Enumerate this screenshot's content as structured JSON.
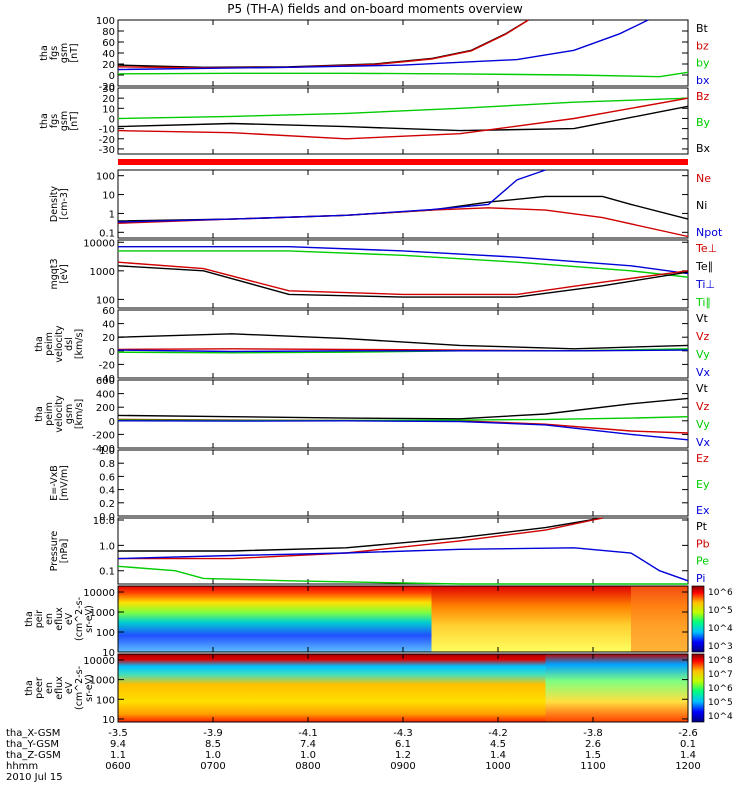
{
  "title": "P5 (TH-A) fields and on-board moments overview",
  "colors": {
    "black": "#000000",
    "red": "#d00000",
    "green": "#00cc00",
    "blue": "#0000d8"
  },
  "chart_data": [
    {
      "type": "line",
      "panel": "fgs-gsm",
      "ylabel_lines": [
        "tha",
        "fgs",
        "gsm",
        "[nT]"
      ],
      "ylim": [
        -20,
        100
      ],
      "yticks": [
        "100",
        "80",
        "60",
        "40",
        "20",
        "0",
        "-20"
      ],
      "ytick_values": [
        100,
        80,
        60,
        40,
        20,
        0,
        -20
      ],
      "legend": [
        {
          "name": "Bt",
          "color": "black"
        },
        {
          "name": "bz",
          "color": "red"
        },
        {
          "name": "by",
          "color": "green"
        },
        {
          "name": "bx",
          "color": "blue"
        }
      ],
      "series": [
        {
          "name": "Bt",
          "color": "black",
          "x": [
            0,
            0.15,
            0.3,
            0.45,
            0.55,
            0.62,
            0.68,
            0.72
          ],
          "y": [
            18,
            14,
            15,
            20,
            30,
            45,
            75,
            100
          ]
        },
        {
          "name": "bz",
          "color": "red",
          "x": [
            0,
            0.15,
            0.3,
            0.45,
            0.55,
            0.62,
            0.68,
            0.72
          ],
          "y": [
            15,
            13,
            14,
            19,
            29,
            44,
            74,
            100
          ]
        },
        {
          "name": "by",
          "color": "green",
          "x": [
            0,
            0.2,
            0.4,
            0.6,
            0.8,
            0.95,
            1.0
          ],
          "y": [
            2,
            3,
            3,
            2,
            0,
            -3,
            5
          ]
        },
        {
          "name": "bx",
          "color": "blue",
          "x": [
            0,
            0.3,
            0.5,
            0.7,
            0.8,
            0.88,
            0.93
          ],
          "y": [
            10,
            14,
            18,
            28,
            45,
            75,
            100
          ]
        }
      ]
    },
    {
      "type": "line",
      "panel": "fgs-gsm-2",
      "ylabel_lines": [
        "tha",
        "fgs",
        "gsm",
        "[nT]"
      ],
      "ylim": [
        -35,
        30
      ],
      "yticks": [
        "30",
        "20",
        "10",
        "0",
        "-10",
        "-20",
        "-30"
      ],
      "ytick_values": [
        30,
        20,
        10,
        0,
        -10,
        -20,
        -30
      ],
      "legend": [
        {
          "name": "Bz",
          "color": "red"
        },
        {
          "name": "By",
          "color": "green"
        },
        {
          "name": "Bx",
          "color": "black"
        }
      ],
      "series": [
        {
          "name": "By",
          "color": "green",
          "x": [
            0,
            0.2,
            0.4,
            0.6,
            0.8,
            1.0
          ],
          "y": [
            0,
            2,
            5,
            10,
            16,
            20
          ]
        },
        {
          "name": "Bx",
          "color": "black",
          "x": [
            0,
            0.2,
            0.4,
            0.6,
            0.8,
            1.0
          ],
          "y": [
            -8,
            -5,
            -8,
            -12,
            -10,
            12
          ]
        },
        {
          "name": "Bz",
          "color": "red",
          "x": [
            0,
            0.2,
            0.4,
            0.6,
            0.8,
            1.0
          ],
          "y": [
            -12,
            -14,
            -20,
            -15,
            0,
            20
          ]
        }
      ]
    },
    {
      "type": "line",
      "panel": "density",
      "ylabel_lines": [
        "Density",
        "[cm-3]"
      ],
      "ylim": [
        0.05,
        200
      ],
      "log": true,
      "yticks": [
        "100",
        "10",
        "1",
        "0.1"
      ],
      "ytick_values": [
        100,
        10,
        1,
        0.1
      ],
      "legend": [
        {
          "name": "Ne",
          "color": "red"
        },
        {
          "name": "Ni",
          "color": "black"
        },
        {
          "name": "Npot",
          "color": "blue"
        }
      ],
      "series": [
        {
          "name": "Ni",
          "color": "black",
          "x": [
            0,
            0.2,
            0.4,
            0.55,
            0.65,
            0.75,
            0.85,
            0.9,
            1.0
          ],
          "y": [
            0.4,
            0.5,
            0.8,
            1.5,
            4,
            8,
            8,
            3,
            0.5
          ]
        },
        {
          "name": "Ne",
          "color": "red",
          "x": [
            0,
            0.2,
            0.4,
            0.55,
            0.65,
            0.75,
            0.85,
            1.0
          ],
          "y": [
            0.3,
            0.5,
            0.8,
            1.5,
            2,
            1.5,
            0.6,
            0.06
          ]
        },
        {
          "name": "Npot",
          "color": "blue",
          "x": [
            0,
            0.2,
            0.4,
            0.55,
            0.65,
            0.7,
            0.75
          ],
          "y": [
            0.35,
            0.5,
            0.8,
            1.6,
            3,
            60,
            200
          ]
        }
      ]
    },
    {
      "type": "line",
      "panel": "temperature",
      "ylabel_lines": [
        "mgqt3",
        "[eV]"
      ],
      "ylim": [
        50,
        12000
      ],
      "log": true,
      "yticks": [
        "10000",
        "1000",
        "100"
      ],
      "ytick_values": [
        10000,
        1000,
        100
      ],
      "legend": [
        {
          "name": "Te⊥",
          "color": "red"
        },
        {
          "name": "Te∥",
          "color": "black"
        },
        {
          "name": "Ti⊥",
          "color": "blue"
        },
        {
          "name": "Ti∥",
          "color": "green"
        }
      ],
      "series": [
        {
          "name": "Ti⊥",
          "color": "blue",
          "x": [
            0,
            0.3,
            0.5,
            0.7,
            0.9,
            1.0
          ],
          "y": [
            7000,
            7000,
            5000,
            3000,
            1500,
            800
          ]
        },
        {
          "name": "Ti∥",
          "color": "green",
          "x": [
            0,
            0.3,
            0.5,
            0.7,
            0.9,
            1.0
          ],
          "y": [
            5000,
            5000,
            3500,
            2000,
            1000,
            600
          ]
        },
        {
          "name": "Te⊥",
          "color": "red",
          "x": [
            0,
            0.15,
            0.3,
            0.5,
            0.7,
            0.85,
            1.0
          ],
          "y": [
            2000,
            1200,
            200,
            150,
            150,
            400,
            1000
          ]
        },
        {
          "name": "Te∥",
          "color": "black",
          "x": [
            0,
            0.15,
            0.3,
            0.5,
            0.7,
            0.85,
            1.0
          ],
          "y": [
            1500,
            1000,
            150,
            120,
            120,
            300,
            900
          ]
        }
      ]
    },
    {
      "type": "line",
      "panel": "velocity-dsl",
      "ylabel_lines": [
        "tha",
        "peim",
        "velocity",
        "dsl",
        "[km/s]"
      ],
      "ylim": [
        -40,
        60
      ],
      "yticks": [
        "60",
        "40",
        "20",
        "0",
        "-20",
        "-40"
      ],
      "ytick_values": [
        60,
        40,
        20,
        0,
        -20,
        -40
      ],
      "legend": [
        {
          "name": "Vt",
          "color": "black"
        },
        {
          "name": "Vz",
          "color": "red"
        },
        {
          "name": "Vy",
          "color": "green"
        },
        {
          "name": "Vx",
          "color": "blue"
        }
      ],
      "series": [
        {
          "name": "Vt",
          "color": "black",
          "x": [
            0,
            0.2,
            0.4,
            0.6,
            0.8,
            1.0
          ],
          "y": [
            20,
            25,
            18,
            8,
            3,
            8
          ]
        },
        {
          "name": "Vz",
          "color": "red",
          "x": [
            0,
            0.2,
            0.4,
            0.6,
            0.8,
            1.0
          ],
          "y": [
            2,
            3,
            2,
            1,
            0,
            2
          ]
        },
        {
          "name": "Vy",
          "color": "green",
          "x": [
            0,
            0.2,
            0.4,
            0.6,
            0.8,
            1.0
          ],
          "y": [
            -2,
            -3,
            -2,
            0,
            0,
            3
          ]
        },
        {
          "name": "Vx",
          "color": "blue",
          "x": [
            0,
            0.2,
            0.4,
            0.6,
            0.8,
            1.0
          ],
          "y": [
            1,
            -1,
            0,
            0,
            0,
            1
          ]
        }
      ]
    },
    {
      "type": "line",
      "panel": "velocity-gsm",
      "ylabel_lines": [
        "tha",
        "peim",
        "velocity",
        "gsm",
        "[km/s]"
      ],
      "ylim": [
        -400,
        600
      ],
      "yticks": [
        "600",
        "400",
        "200",
        "0",
        "-200",
        "-400"
      ],
      "ytick_values": [
        600,
        400,
        200,
        0,
        -200,
        -400
      ],
      "legend": [
        {
          "name": "Vt",
          "color": "black"
        },
        {
          "name": "Vz",
          "color": "red"
        },
        {
          "name": "Vy",
          "color": "green"
        },
        {
          "name": "Vx",
          "color": "blue"
        }
      ],
      "series": [
        {
          "name": "Vt",
          "color": "black",
          "x": [
            0,
            0.2,
            0.4,
            0.6,
            0.75,
            0.9,
            1.0
          ],
          "y": [
            80,
            60,
            40,
            30,
            100,
            250,
            330
          ]
        },
        {
          "name": "Vz",
          "color": "red",
          "x": [
            0,
            0.2,
            0.4,
            0.6,
            0.75,
            0.9,
            1.0
          ],
          "y": [
            20,
            10,
            5,
            0,
            -50,
            -150,
            -180
          ]
        },
        {
          "name": "Vy",
          "color": "green",
          "x": [
            0,
            0.2,
            0.4,
            0.6,
            0.75,
            0.9,
            1.0
          ],
          "y": [
            10,
            5,
            5,
            10,
            20,
            40,
            60
          ]
        },
        {
          "name": "Vx",
          "color": "blue",
          "x": [
            0,
            0.2,
            0.4,
            0.6,
            0.75,
            0.9,
            1.0
          ],
          "y": [
            0,
            -5,
            0,
            -10,
            -60,
            -200,
            -280
          ]
        }
      ]
    },
    {
      "type": "line",
      "panel": "efield",
      "ylabel_lines": [
        "E=-VxB",
        "[mV/m]"
      ],
      "ylim": [
        0,
        1
      ],
      "yticks": [
        "1.0",
        "0.8",
        "0.6",
        "0.4",
        "0.2",
        "0.0"
      ],
      "ytick_values": [
        1,
        0.8,
        0.6,
        0.4,
        0.2,
        0
      ],
      "legend": [
        {
          "name": "Ez",
          "color": "red"
        },
        {
          "name": "Ey",
          "color": "green"
        },
        {
          "name": "Ex",
          "color": "blue"
        }
      ],
      "series": []
    },
    {
      "type": "line",
      "panel": "pressure",
      "ylabel_lines": [
        "Pressure",
        "[nPa]"
      ],
      "ylim": [
        0.03,
        12
      ],
      "log": true,
      "yticks": [
        "10.0",
        "1.0",
        "0.1"
      ],
      "ytick_values": [
        10,
        1,
        0.1
      ],
      "legend": [
        {
          "name": "Pt",
          "color": "black"
        },
        {
          "name": "Pb",
          "color": "red"
        },
        {
          "name": "Pe",
          "color": "green"
        },
        {
          "name": "Pi",
          "color": "blue"
        }
      ],
      "series": [
        {
          "name": "Pt",
          "color": "black",
          "x": [
            0,
            0.2,
            0.4,
            0.6,
            0.75,
            0.85
          ],
          "y": [
            0.6,
            0.6,
            0.8,
            2,
            5,
            12
          ]
        },
        {
          "name": "Pb",
          "color": "red",
          "x": [
            0,
            0.2,
            0.4,
            0.6,
            0.75,
            0.85
          ],
          "y": [
            0.3,
            0.3,
            0.5,
            1.5,
            4,
            12
          ]
        },
        {
          "name": "Pi",
          "color": "blue",
          "x": [
            0,
            0.2,
            0.4,
            0.6,
            0.8,
            0.9,
            0.95,
            1.0
          ],
          "y": [
            0.3,
            0.4,
            0.5,
            0.7,
            0.8,
            0.5,
            0.1,
            0.04
          ]
        },
        {
          "name": "Pe",
          "color": "green",
          "x": [
            0,
            0.1,
            0.15,
            0.3,
            0.6,
            0.9,
            1.0
          ],
          "y": [
            0.15,
            0.1,
            0.05,
            0.04,
            0.03,
            0.03,
            0.03
          ]
        }
      ]
    },
    {
      "type": "heatmap",
      "panel": "peir-energy",
      "ylabel_lines": [
        "tha",
        "peir",
        "en",
        "eflux",
        "eV",
        "(cm^2-s-",
        "sr-eV)"
      ],
      "ylim": [
        10,
        20000
      ],
      "log": true,
      "yticks": [
        "10000",
        "1000",
        "100",
        "10"
      ],
      "ytick_values": [
        10000,
        1000,
        100,
        10
      ],
      "colorbar_ticks": [
        "10^6",
        "10^5",
        "10^4",
        "10^3"
      ]
    },
    {
      "type": "heatmap",
      "panel": "peer-energy",
      "ylabel_lines": [
        "tha",
        "peer",
        "en",
        "eflux",
        "eV",
        "(cm^2-s-",
        "sr-eV)"
      ],
      "ylim": [
        7,
        20000
      ],
      "log": true,
      "yticks": [
        "10000",
        "1000",
        "100",
        "10"
      ],
      "ytick_values": [
        10000,
        1000,
        100,
        10
      ],
      "colorbar_ticks": [
        "10^8",
        "10^7",
        "10^6",
        "10^5",
        "10^4"
      ]
    }
  ],
  "xaxis": {
    "rows": [
      {
        "label": "tha_X-GSM",
        "values": [
          "-3.5",
          "-3.9",
          "-4.1",
          "-4.3",
          "-4.2",
          "-3.8",
          "-2.6"
        ]
      },
      {
        "label": "tha_Y-GSM",
        "values": [
          "9.4",
          "8.5",
          "7.4",
          "6.1",
          "4.5",
          "2.6",
          "0.1"
        ]
      },
      {
        "label": "tha_Z-GSM",
        "values": [
          "1.1",
          "1.0",
          "1.0",
          "1.2",
          "1.4",
          "1.5",
          "1.4"
        ]
      },
      {
        "label": "hhmm",
        "values": [
          "0600",
          "0700",
          "0800",
          "0900",
          "1000",
          "1100",
          "1200"
        ]
      }
    ],
    "date": "2010 Jul 15"
  }
}
